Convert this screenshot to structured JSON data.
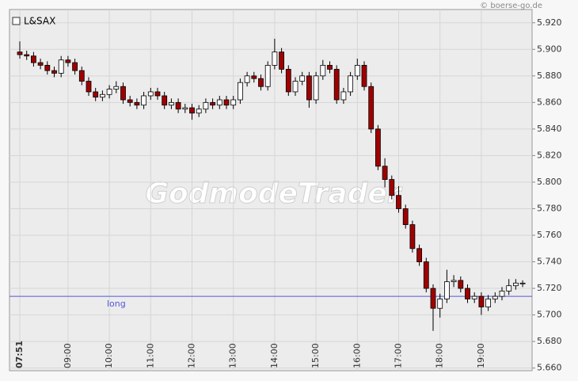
{
  "chart_data": {
    "type": "candlestick",
    "legend": "L&SAX",
    "credit": "© boerse-go.de",
    "watermark": "GodmodeTrader",
    "up_color": "#ffffff",
    "down_color": "#a00000",
    "outline_color": "#000000",
    "grid": true,
    "categories": [
      "07:51",
      null,
      null,
      null,
      null,
      null,
      null,
      "09:00",
      null,
      null,
      null,
      null,
      null,
      "10:00",
      null,
      null,
      null,
      null,
      null,
      "11:00",
      null,
      null,
      null,
      null,
      null,
      "12:00",
      null,
      null,
      null,
      null,
      null,
      "13:00",
      null,
      null,
      null,
      null,
      null,
      "14:00",
      null,
      null,
      null,
      null,
      null,
      "15:00",
      null,
      null,
      null,
      null,
      null,
      "16:00",
      null,
      null,
      null,
      null,
      null,
      "17:00",
      null,
      null,
      null,
      null,
      null,
      "18:00",
      null,
      null,
      null,
      null,
      null,
      "19:00",
      null,
      null,
      null,
      null,
      null,
      null
    ],
    "open": [
      5.898,
      5.896,
      5.895,
      5.89,
      5.888,
      5.884,
      5.882,
      5.892,
      5.89,
      5.884,
      5.876,
      5.868,
      5.864,
      5.866,
      5.87,
      5.872,
      5.862,
      5.86,
      5.858,
      5.865,
      5.868,
      5.865,
      5.858,
      5.86,
      5.855,
      5.856,
      5.852,
      5.855,
      5.86,
      5.858,
      5.862,
      5.858,
      5.862,
      5.875,
      5.88,
      5.878,
      5.872,
      5.888,
      5.898,
      5.885,
      5.868,
      5.876,
      5.88,
      5.862,
      5.88,
      5.888,
      5.885,
      5.862,
      5.868,
      5.88,
      5.888,
      5.872,
      5.84,
      5.812,
      5.802,
      5.79,
      5.78,
      5.768,
      5.75,
      5.74,
      5.72,
      5.705,
      5.712,
      5.725,
      5.726,
      5.72,
      5.712,
      5.714,
      5.706,
      5.712,
      5.714,
      5.718,
      5.722,
      5.724
    ],
    "high": [
      5.906,
      5.899,
      5.898,
      5.893,
      5.891,
      5.887,
      5.895,
      5.895,
      5.893,
      5.887,
      5.879,
      5.871,
      5.869,
      5.873,
      5.876,
      5.875,
      5.865,
      5.863,
      5.868,
      5.871,
      5.871,
      5.868,
      5.863,
      5.863,
      5.859,
      5.859,
      5.858,
      5.863,
      5.863,
      5.865,
      5.865,
      5.865,
      5.878,
      5.883,
      5.883,
      5.881,
      5.891,
      5.908,
      5.901,
      5.888,
      5.879,
      5.883,
      5.883,
      5.883,
      5.892,
      5.891,
      5.888,
      5.871,
      5.883,
      5.893,
      5.891,
      5.875,
      5.843,
      5.818,
      5.805,
      5.797,
      5.783,
      5.771,
      5.753,
      5.743,
      5.723,
      5.716,
      5.734,
      5.73,
      5.729,
      5.723,
      5.717,
      5.717,
      5.715,
      5.717,
      5.721,
      5.727,
      5.727,
      5.726
    ],
    "low": [
      5.893,
      5.892,
      5.887,
      5.885,
      5.881,
      5.879,
      5.879,
      5.887,
      5.881,
      5.873,
      5.865,
      5.861,
      5.861,
      5.863,
      5.867,
      5.859,
      5.857,
      5.855,
      5.855,
      5.862,
      5.862,
      5.855,
      5.855,
      5.852,
      5.852,
      5.847,
      5.849,
      5.852,
      5.855,
      5.855,
      5.855,
      5.855,
      5.859,
      5.872,
      5.875,
      5.869,
      5.869,
      5.885,
      5.882,
      5.865,
      5.865,
      5.873,
      5.856,
      5.859,
      5.877,
      5.882,
      5.859,
      5.859,
      5.865,
      5.877,
      5.869,
      5.837,
      5.809,
      5.796,
      5.787,
      5.777,
      5.765,
      5.747,
      5.737,
      5.717,
      5.688,
      5.698,
      5.709,
      5.721,
      5.717,
      5.709,
      5.709,
      5.7,
      5.703,
      5.709,
      5.711,
      5.715,
      5.719,
      5.721
    ],
    "close": [
      5.896,
      5.895,
      5.89,
      5.888,
      5.884,
      5.882,
      5.892,
      5.89,
      5.884,
      5.876,
      5.868,
      5.864,
      5.866,
      5.87,
      5.872,
      5.862,
      5.86,
      5.858,
      5.865,
      5.868,
      5.865,
      5.858,
      5.86,
      5.855,
      5.856,
      5.852,
      5.855,
      5.86,
      5.858,
      5.862,
      5.858,
      5.862,
      5.875,
      5.88,
      5.878,
      5.872,
      5.888,
      5.898,
      5.885,
      5.868,
      5.876,
      5.88,
      5.862,
      5.88,
      5.888,
      5.885,
      5.862,
      5.868,
      5.88,
      5.888,
      5.872,
      5.84,
      5.812,
      5.802,
      5.79,
      5.78,
      5.768,
      5.75,
      5.74,
      5.72,
      5.705,
      5.712,
      5.725,
      5.726,
      5.72,
      5.712,
      5.714,
      5.706,
      5.712,
      5.714,
      5.718,
      5.722,
      5.724,
      5.724
    ],
    "annotations": [
      {
        "text": "long",
        "value": 5.714,
        "color": "#5555dd"
      }
    ],
    "ylim": [
      5.658,
      5.93
    ],
    "yticks": [
      {
        "value": 5.66,
        "label": "5.660"
      },
      {
        "value": 5.68,
        "label": "5.680"
      },
      {
        "value": 5.7,
        "label": "5.700"
      },
      {
        "value": 5.72,
        "label": "5.720"
      },
      {
        "value": 5.74,
        "label": "5.740"
      },
      {
        "value": 5.76,
        "label": "5.760"
      },
      {
        "value": 5.78,
        "label": "5.780"
      },
      {
        "value": 5.8,
        "label": "5.800"
      },
      {
        "value": 5.82,
        "label": "5.820"
      },
      {
        "value": 5.84,
        "label": "5.840"
      },
      {
        "value": 5.86,
        "label": "5.860"
      },
      {
        "value": 5.88,
        "label": "5.880"
      },
      {
        "value": 5.9,
        "label": "5.900"
      },
      {
        "value": 5.92,
        "label": "5.920"
      }
    ]
  }
}
